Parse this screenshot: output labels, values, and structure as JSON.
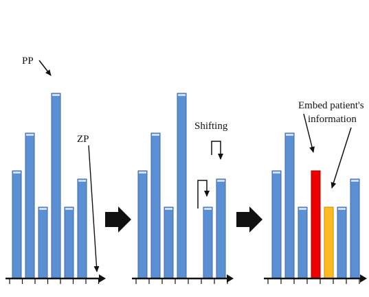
{
  "diagram": {
    "colors": {
      "bar": "#5b8fd4",
      "bar_edge": "#3c68a6",
      "bar_top": "#cfe0f6",
      "peak": "#ee0000",
      "embedded": "#ffbb22",
      "axis": "#111111",
      "arrow": "#111111"
    },
    "panel_1": {
      "label_peak": "PP",
      "label_zero": "ZP",
      "bars": [
        {
          "height": 0.54,
          "kind": "normal"
        },
        {
          "height": 0.73,
          "kind": "normal"
        },
        {
          "height": 0.36,
          "kind": "normal"
        },
        {
          "height": 0.93,
          "kind": "normal"
        },
        {
          "height": 0.36,
          "kind": "normal"
        },
        {
          "height": 0.5,
          "kind": "normal"
        },
        {
          "height": 0.0,
          "kind": "empty"
        }
      ]
    },
    "panel_2": {
      "label_shift": "Shifting",
      "bars": [
        {
          "height": 0.54,
          "kind": "normal"
        },
        {
          "height": 0.73,
          "kind": "normal"
        },
        {
          "height": 0.36,
          "kind": "normal"
        },
        {
          "height": 0.93,
          "kind": "normal"
        },
        {
          "height": 0.0,
          "kind": "empty"
        },
        {
          "height": 0.36,
          "kind": "normal"
        },
        {
          "height": 0.5,
          "kind": "normal"
        }
      ]
    },
    "panel_3": {
      "label_embed_line1": "Embed patient's",
      "label_embed_line2": "information",
      "bars": [
        {
          "height": 0.54,
          "kind": "normal"
        },
        {
          "height": 0.73,
          "kind": "normal"
        },
        {
          "height": 0.36,
          "kind": "normal"
        },
        {
          "height": 0.54,
          "kind": "peak"
        },
        {
          "height": 0.36,
          "kind": "embedded"
        },
        {
          "height": 0.36,
          "kind": "normal"
        },
        {
          "height": 0.5,
          "kind": "normal"
        }
      ]
    }
  }
}
